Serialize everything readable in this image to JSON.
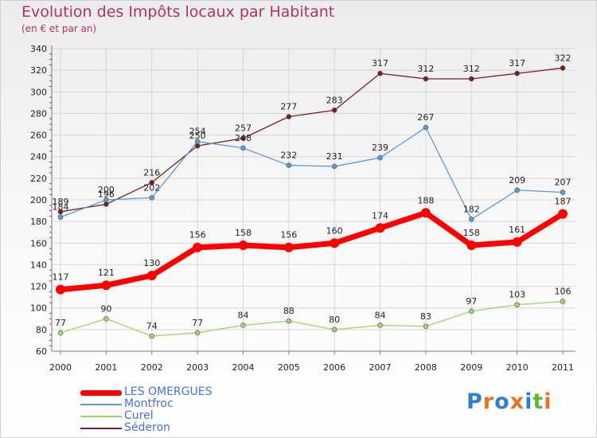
{
  "header": {
    "title": "Evolution des Impôts locaux par Habitant",
    "subtitle": "(en € et par an)"
  },
  "logo": {
    "text": "Proxiti",
    "colors": [
      "#2f7fd1",
      "#e8731f",
      "#2f7fd1",
      "#e8731f",
      "#2f7fd1",
      "#5fb832",
      "#e8731f"
    ]
  },
  "chart_data": {
    "type": "line",
    "x": [
      "2000",
      "2001",
      "2002",
      "2003",
      "2004",
      "2005",
      "2006",
      "2007",
      "2008",
      "2009",
      "2010",
      "2011"
    ],
    "ylim": [
      60,
      340
    ],
    "yticks": [
      60,
      80,
      100,
      120,
      140,
      160,
      180,
      200,
      220,
      240,
      260,
      280,
      300,
      320,
      340
    ],
    "grid": true,
    "legend_position": "bottom-left",
    "series": [
      {
        "name": "Séderon",
        "color": "#7a1f1f",
        "line_width": 1.3,
        "marker_radius": 3,
        "values": [
          189,
          196,
          216,
          250,
          257,
          277,
          283,
          317,
          312,
          312,
          317,
          322
        ]
      },
      {
        "name": "Montfroc",
        "color": "#5b9bd5",
        "line_width": 1.3,
        "marker_radius": 3,
        "values": [
          184,
          200,
          202,
          254,
          248,
          232,
          231,
          239,
          267,
          182,
          209,
          207
        ]
      },
      {
        "name": "Curel",
        "color": "#9ed66b",
        "line_width": 1.3,
        "marker_radius": 3,
        "values": [
          77,
          90,
          74,
          77,
          84,
          88,
          80,
          84,
          83,
          97,
          103,
          106
        ]
      },
      {
        "name": "LES OMERGUES",
        "color": "#ff0000",
        "line_width": 7,
        "marker_radius": 6,
        "values": [
          117,
          121,
          130,
          156,
          158,
          156,
          160,
          174,
          188,
          158,
          161,
          187
        ]
      }
    ]
  },
  "legend": [
    {
      "name": "LES OMERGUES",
      "color": "#ff0000",
      "thickness": 7
    },
    {
      "name": "Montfroc",
      "color": "#5b9bd5",
      "thickness": 2
    },
    {
      "name": "Curel",
      "color": "#9ed66b",
      "thickness": 2
    },
    {
      "name": "Séderon",
      "color": "#7a1f1f",
      "thickness": 2
    }
  ]
}
